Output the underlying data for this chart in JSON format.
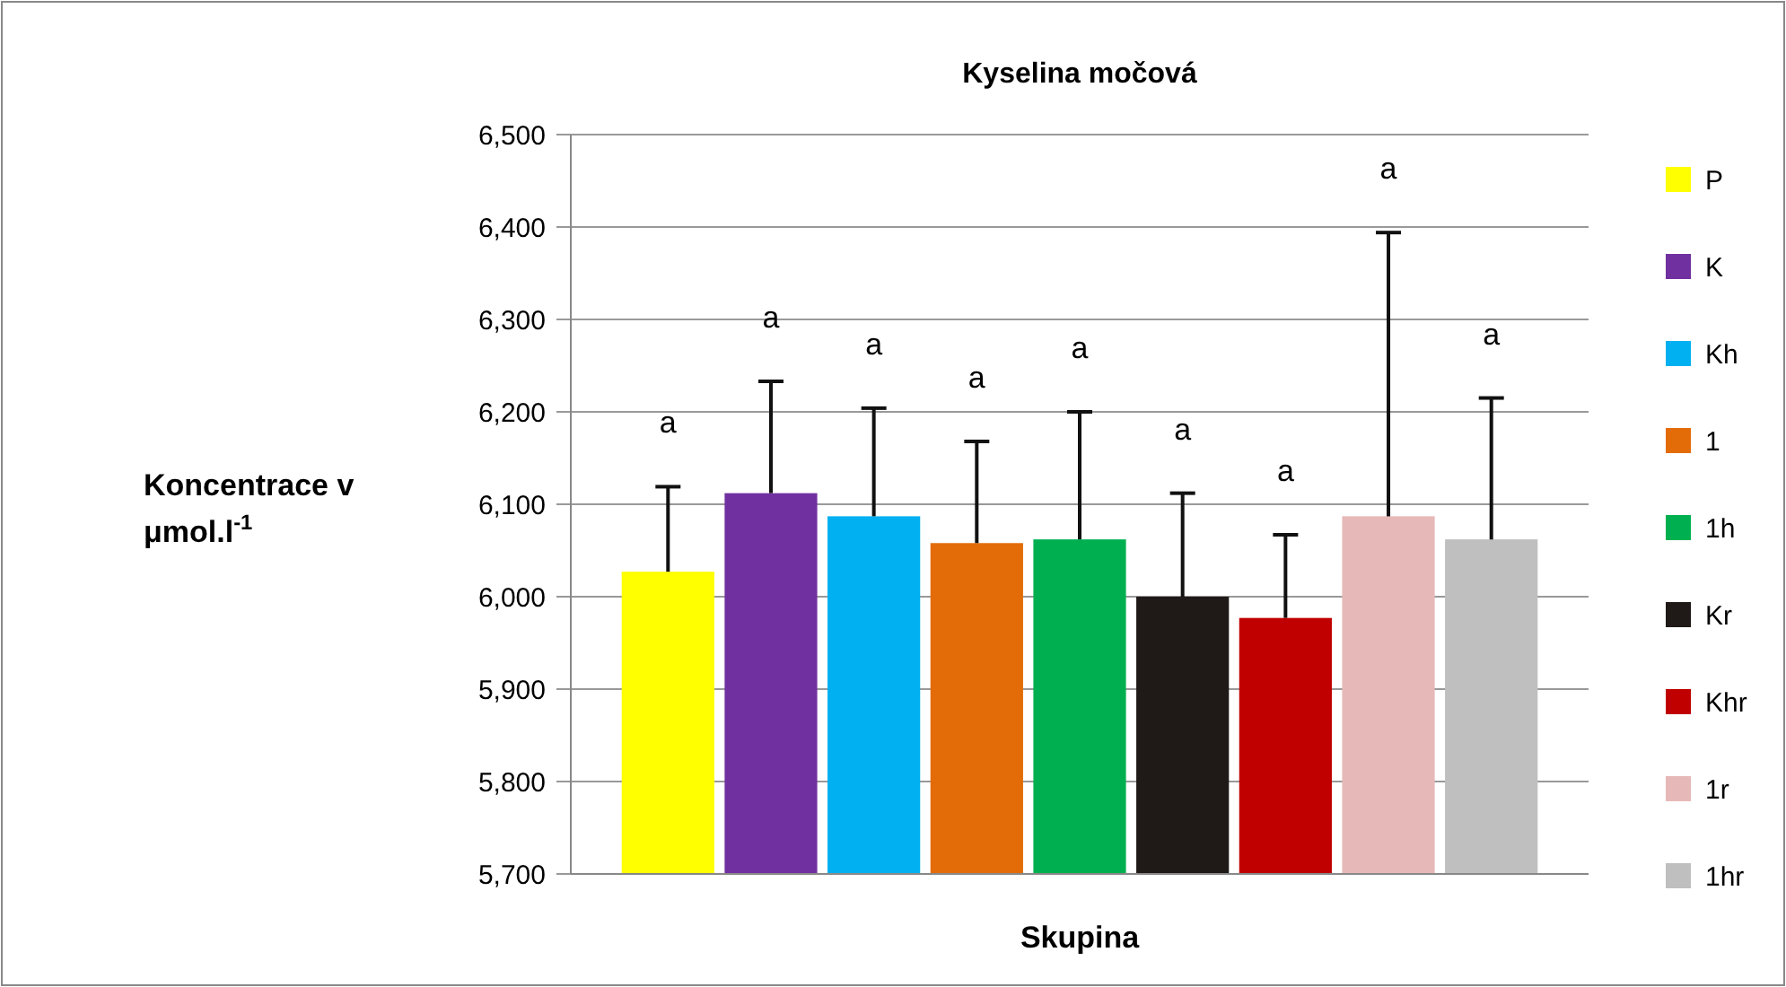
{
  "chart_data": {
    "type": "bar",
    "title": "Kyselina močová",
    "xlabel": "Skupina",
    "ylabel": "Koncentrace v μmol.l$^{-1}$",
    "categories": [
      null
    ],
    "series": [
      {
        "name": "P",
        "color": "#ffff00",
        "values": [
          6027
        ],
        "errors": [
          92
        ]
      },
      {
        "name": "K",
        "color": "#7030a0",
        "values": [
          6112
        ],
        "errors": [
          121
        ]
      },
      {
        "name": "Kh",
        "color": "#00b0f0",
        "values": [
          6087
        ],
        "errors": [
          117
        ]
      },
      {
        "name": "1",
        "color": "#e36c09",
        "values": [
          6058
        ],
        "errors": [
          110
        ]
      },
      {
        "name": "1h",
        "color": "#00b050",
        "values": [
          6062
        ],
        "errors": [
          138
        ]
      },
      {
        "name": "Kr",
        "color": "#1f1a17",
        "values": [
          6000
        ],
        "errors": [
          112
        ]
      },
      {
        "name": "Khr",
        "color": "#c00000",
        "values": [
          5977
        ],
        "errors": [
          90
        ]
      },
      {
        "name": "1r",
        "color": "#e6b9b8",
        "values": [
          6087
        ],
        "errors": [
          307
        ]
      },
      {
        "name": "1hr",
        "color": "#bfbfbf",
        "values": [
          6062
        ],
        "errors": [
          153
        ]
      }
    ],
    "ylim": [
      5700,
      6500
    ],
    "yticks": [
      {
        "value": 5700,
        "label": "5,700"
      },
      {
        "value": 5800,
        "label": "5,800"
      },
      {
        "value": 5900,
        "label": "5,900"
      },
      {
        "value": 6000,
        "label": "6,000"
      },
      {
        "value": 6100,
        "label": "6,100"
      },
      {
        "value": 6200,
        "label": "6,200"
      },
      {
        "value": 6300,
        "label": "6,300"
      },
      {
        "value": 6400,
        "label": "6,400"
      },
      {
        "value": 6500,
        "label": "6,500"
      }
    ],
    "grid": "y",
    "legend": "right",
    "tick_labels": "y",
    "annotations": [
      "a",
      "a",
      "a",
      "a",
      "a",
      "a",
      "a",
      "a",
      "a"
    ]
  }
}
